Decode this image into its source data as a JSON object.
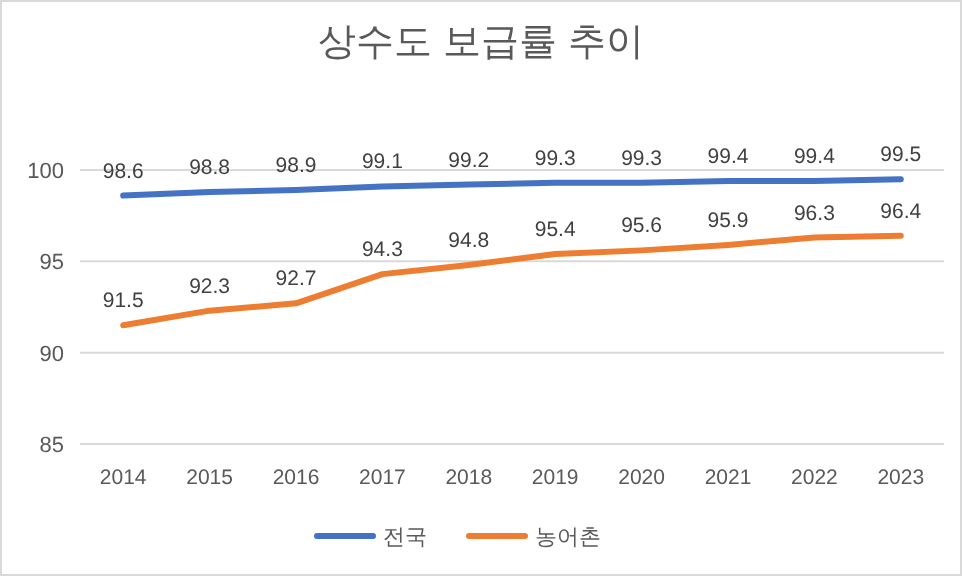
{
  "chart_data": {
    "type": "line",
    "title": "상수도 보급률 추이",
    "categories": [
      "2014",
      "2015",
      "2016",
      "2017",
      "2018",
      "2019",
      "2020",
      "2021",
      "2022",
      "2023"
    ],
    "series": [
      {
        "name": "전국",
        "color": "#4472c4",
        "values": [
          98.6,
          98.8,
          98.9,
          99.1,
          99.2,
          99.3,
          99.3,
          99.4,
          99.4,
          99.5
        ]
      },
      {
        "name": "농어촌",
        "color": "#ed7d31",
        "values": [
          91.5,
          92.3,
          92.7,
          94.3,
          94.8,
          95.4,
          95.6,
          95.9,
          96.3,
          96.4
        ]
      }
    ],
    "ylim": [
      85,
      100
    ],
    "yticks": [
      85,
      90,
      95,
      100
    ],
    "grid": "y",
    "legend": "bottom",
    "data_labels": true,
    "marker": "none",
    "line_style": "solid"
  }
}
